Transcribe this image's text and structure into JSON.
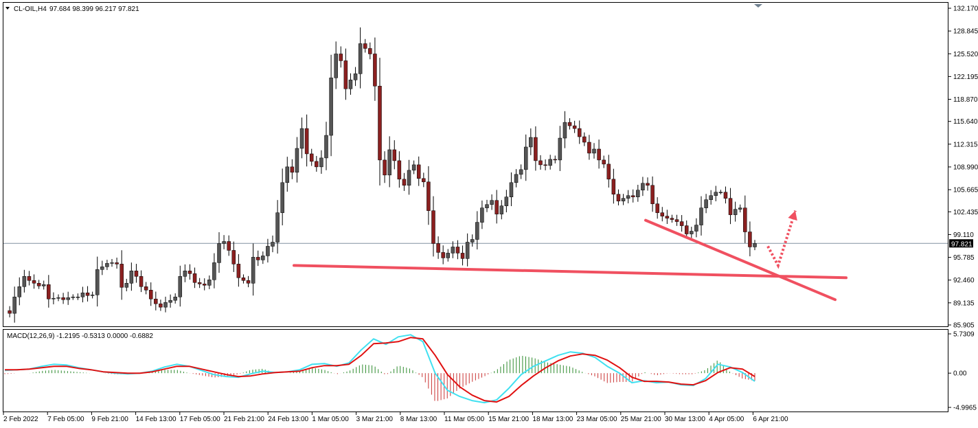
{
  "header": {
    "symbol": "CL-OIL,H4",
    "ohlc": "97.684 98.399 96.217 97.821",
    "macd_label": "MACD(12,26,9) -1.2195 -0.5313 0.0000 -0.6882"
  },
  "colors": {
    "background": "#ffffff",
    "up": "#555555",
    "down": "#8b2020",
    "annotation": "#f05060",
    "macd_line": "#40e0f0",
    "signal_line": "#e01010",
    "hist_up": "#2e8b2e",
    "hist_down": "#c83232",
    "price_line": "#8090a0"
  },
  "chart_data": [
    {
      "type": "candlestick",
      "name": "",
      "ylim": [
        85.905,
        132.17
      ],
      "yticks": [
        "132.170",
        "128.845",
        "125.520",
        "122.195",
        "118.870",
        "115.640",
        "112.315",
        "108.990",
        "105.665",
        "102.435",
        "99.110",
        "95.785",
        "92.460",
        "89.135",
        "85.905"
      ],
      "ytick_values": [
        132.17,
        128.845,
        125.52,
        122.195,
        118.87,
        115.64,
        112.315,
        108.99,
        105.665,
        102.435,
        99.11,
        95.785,
        92.46,
        89.135,
        85.905
      ],
      "current_price": 97.821,
      "current_label": "97.821",
      "xticks": [
        "2 Feb 2022",
        "7 Feb 05:00",
        "9 Feb 21:00",
        "14 Feb 13:00",
        "17 Feb 05:00",
        "21 Feb 21:00",
        "24 Feb 13:00",
        "1 Mar 05:00",
        "3 Mar 21:00",
        "8 Mar 13:00",
        "11 Mar 05:00",
        "15 Mar 21:00",
        "18 Mar 13:00",
        "23 Mar 05:00",
        "25 Mar 21:00",
        "30 Mar 13:00",
        "4 Apr 05:00",
        "6 Apr 21:00"
      ],
      "close_path": [
        88.0,
        87.6,
        90.0,
        91.5,
        93.0,
        92.4,
        92.0,
        91.6,
        91.8,
        89.7,
        89.8,
        89.9,
        89.6,
        89.9,
        90.0,
        90.0,
        90.6,
        90.2,
        90.3,
        94.0,
        94.4,
        94.9,
        95.0,
        94.8,
        91.4,
        92.0,
        93.8,
        93.0,
        91.5,
        91.0,
        89.7,
        89.0,
        88.5,
        89.2,
        89.5,
        90.0,
        93.0,
        93.8,
        93.4,
        92.1,
        91.9,
        91.7,
        92.5,
        95.0,
        97.8,
        98.1,
        96.8,
        94.8,
        92.8,
        92.4,
        92.0,
        95.8,
        95.4,
        96.0,
        97.4,
        98.0,
        102.3,
        106.7,
        109.0,
        108.2,
        111.7,
        114.6,
        110.9,
        109.8,
        109.0,
        110.3,
        113.6,
        122.0,
        125.5,
        124.5,
        120.4,
        121.7,
        122.6,
        127.0,
        126.3,
        125.5,
        120.8,
        110.0,
        107.8,
        111.5,
        109.9,
        107.2,
        106.3,
        108.5,
        109.3,
        107.3,
        106.8,
        102.6,
        97.8,
        96.5,
        95.7,
        96.4,
        97.3,
        96.4,
        95.6,
        98.0,
        98.4,
        100.9,
        103.0,
        103.5,
        104.1,
        102.1,
        103.3,
        104.6,
        106.7,
        107.9,
        108.6,
        111.9,
        113.3,
        109.9,
        109.3,
        109.2,
        110.1,
        110.0,
        113.2,
        115.5,
        115.0,
        114.6,
        113.4,
        112.6,
        111.0,
        111.6,
        110.0,
        109.4,
        107.2,
        105.0,
        104.0,
        104.4,
        104.8,
        104.6,
        105.6,
        106.6,
        106.3,
        103.6,
        102.3,
        101.8,
        101.5,
        101.3,
        101.0,
        100.4,
        99.2,
        99.6,
        100.5,
        103.0,
        104.2,
        104.8,
        105.3,
        105.3,
        104.4,
        102.0,
        102.8,
        103.0,
        99.5,
        97.3,
        97.8
      ],
      "annotations": [
        {
          "type": "line",
          "from": [
            428,
            94.6
          ],
          "to": [
            1232,
            92.8
          ]
        },
        {
          "type": "line",
          "from": [
            940,
            101.2
          ],
          "to": [
            1216,
            89.6
          ]
        },
        {
          "type": "dotted-arrow",
          "points": [
            [
              1118,
              97.4
            ],
            [
              1133,
              94.6
            ],
            [
              1158,
              102.6
            ]
          ]
        }
      ]
    },
    {
      "type": "macd",
      "name": "",
      "ylim": [
        -4.9965,
        5.7309
      ],
      "yticks": [
        "5.7309",
        "0.00",
        "-4.9965"
      ],
      "ytick_values": [
        5.7309,
        0.0,
        -4.9965
      ],
      "macd_path": [
        0.4,
        0.5,
        0.6,
        1.0,
        1.3,
        1.2,
        0.8,
        0.5,
        0.2,
        0.0,
        -0.1,
        0.0,
        0.3,
        0.9,
        1.3,
        1.0,
        0.4,
        -0.2,
        -0.5,
        -0.6,
        -0.1,
        0.3,
        0.1,
        0.2,
        0.5,
        1.3,
        1.4,
        1.0,
        1.5,
        3.4,
        5.0,
        4.2,
        5.3,
        5.6,
        4.6,
        0.0,
        -2.5,
        -3.4,
        -4.0,
        -4.3,
        -3.9,
        -2.2,
        -0.2,
        1.0,
        1.8,
        2.6,
        3.1,
        2.9,
        2.3,
        1.0,
        0.0,
        -1.4,
        -1.1,
        -1.4,
        -1.3,
        -1.7,
        -1.8,
        -0.8,
        1.3,
        0.9,
        0.1,
        -1.2
      ],
      "signal_path": [
        0.5,
        0.5,
        0.6,
        0.8,
        1.0,
        1.0,
        0.7,
        0.5,
        0.2,
        0.1,
        0.0,
        0.0,
        0.2,
        0.6,
        1.0,
        1.0,
        0.6,
        0.2,
        -0.2,
        -0.5,
        -0.4,
        -0.1,
        0.1,
        0.2,
        0.3,
        0.8,
        1.1,
        1.1,
        1.3,
        2.6,
        4.3,
        4.4,
        4.6,
        5.2,
        5.0,
        2.6,
        -0.2,
        -2.0,
        -3.2,
        -4.0,
        -4.2,
        -3.4,
        -1.8,
        -0.4,
        0.8,
        1.8,
        2.5,
        2.8,
        2.6,
        1.9,
        0.8,
        -0.6,
        -1.2,
        -1.2,
        -1.3,
        -1.6,
        -1.7,
        -1.1,
        0.1,
        0.8,
        0.6,
        -0.5
      ]
    }
  ]
}
